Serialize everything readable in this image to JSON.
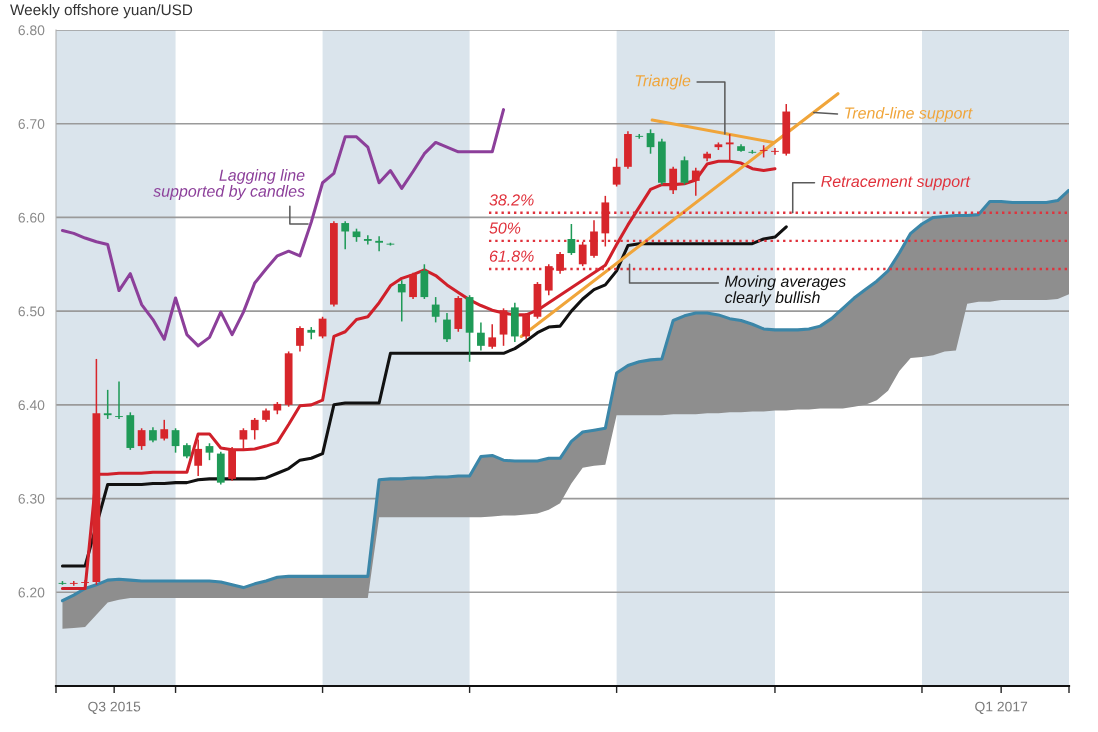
{
  "chart_data": {
    "type": "candlestick",
    "title": "Weekly offshore yuan/USD",
    "x": [
      "2015-07-20",
      "2015-07-27",
      "2015-08-03",
      "2015-08-10",
      "2015-08-17",
      "2015-08-24",
      "2015-08-31",
      "2015-09-07",
      "2015-09-14",
      "2015-09-21",
      "2015-09-28",
      "2015-10-05",
      "2015-10-12",
      "2015-10-19",
      "2015-10-26",
      "2015-11-02",
      "2015-11-09",
      "2015-11-16",
      "2015-11-23",
      "2015-11-30",
      "2015-12-07",
      "2015-12-14",
      "2015-12-21",
      "2015-12-28",
      "2016-01-04",
      "2016-01-11",
      "2016-01-18",
      "2016-01-25",
      "2016-02-01",
      "2016-02-08",
      "2016-02-15",
      "2016-02-22",
      "2016-02-29",
      "2016-03-07",
      "2016-03-14",
      "2016-03-21",
      "2016-03-28",
      "2016-04-04",
      "2016-04-11",
      "2016-04-18",
      "2016-04-25",
      "2016-05-02",
      "2016-05-09",
      "2016-05-16",
      "2016-05-23",
      "2016-05-30",
      "2016-06-06",
      "2016-06-13",
      "2016-06-20",
      "2016-06-27",
      "2016-07-04",
      "2016-07-11",
      "2016-07-18",
      "2016-07-25",
      "2016-08-01",
      "2016-08-08",
      "2016-08-15",
      "2016-08-22",
      "2016-08-29",
      "2016-09-05",
      "2016-09-12",
      "2016-09-19",
      "2016-09-26",
      "2016-10-03",
      "2016-10-10"
    ],
    "ohlc": [
      [
        6.21,
        6.212,
        6.208,
        6.209
      ],
      [
        6.209,
        6.212,
        6.207,
        6.21
      ],
      [
        6.21,
        6.213,
        6.208,
        6.211
      ],
      [
        6.211,
        6.449,
        6.208,
        6.391
      ],
      [
        6.391,
        6.416,
        6.385,
        6.389
      ],
      [
        6.388,
        6.425,
        6.385,
        6.387
      ],
      [
        6.389,
        6.392,
        6.352,
        6.354
      ],
      [
        6.356,
        6.375,
        6.352,
        6.373
      ],
      [
        6.373,
        6.376,
        6.36,
        6.362
      ],
      [
        6.364,
        6.384,
        6.362,
        6.374
      ],
      [
        6.373,
        6.375,
        6.349,
        6.356
      ],
      [
        6.357,
        6.359,
        6.343,
        6.345
      ],
      [
        6.335,
        6.363,
        6.324,
        6.353
      ],
      [
        6.356,
        6.359,
        6.341,
        6.349
      ],
      [
        6.348,
        6.35,
        6.315,
        6.317
      ],
      [
        6.321,
        6.355,
        6.319,
        6.353
      ],
      [
        6.363,
        6.375,
        6.353,
        6.373
      ],
      [
        6.373,
        6.386,
        6.363,
        6.384
      ],
      [
        6.384,
        6.396,
        6.382,
        6.394
      ],
      [
        6.394,
        6.403,
        6.39,
        6.401
      ],
      [
        6.4,
        6.457,
        6.398,
        6.455
      ],
      [
        6.463,
        6.484,
        6.457,
        6.482
      ],
      [
        6.48,
        6.483,
        6.47,
        6.477
      ],
      [
        6.473,
        6.494,
        6.471,
        6.492
      ],
      [
        6.507,
        6.596,
        6.505,
        6.594
      ],
      [
        6.594,
        6.596,
        6.566,
        6.585
      ],
      [
        6.585,
        6.588,
        6.574,
        6.579
      ],
      [
        6.577,
        6.581,
        6.571,
        6.575
      ],
      [
        6.575,
        6.58,
        6.564,
        6.573
      ],
      [
        6.572,
        6.573,
        6.57,
        6.571
      ],
      [
        6.529,
        6.533,
        6.489,
        6.52
      ],
      [
        6.515,
        6.541,
        6.513,
        6.539
      ],
      [
        6.543,
        6.55,
        6.513,
        6.515
      ],
      [
        6.507,
        6.515,
        6.488,
        6.494
      ],
      [
        6.491,
        6.498,
        6.467,
        6.47
      ],
      [
        6.481,
        6.516,
        6.478,
        6.514
      ],
      [
        6.515,
        6.517,
        6.446,
        6.477
      ],
      [
        6.477,
        6.488,
        6.458,
        6.463
      ],
      [
        6.462,
        6.486,
        6.46,
        6.472
      ],
      [
        6.475,
        6.503,
        6.463,
        6.501
      ],
      [
        6.504,
        6.509,
        6.467,
        6.473
      ],
      [
        6.473,
        6.498,
        6.47,
        6.496
      ],
      [
        6.494,
        6.531,
        6.492,
        6.529
      ],
      [
        6.522,
        6.55,
        6.517,
        6.548
      ],
      [
        6.543,
        6.563,
        6.54,
        6.561
      ],
      [
        6.577,
        6.593,
        6.56,
        6.562
      ],
      [
        6.55,
        6.574,
        6.548,
        6.571
      ],
      [
        6.559,
        6.597,
        6.557,
        6.585
      ],
      [
        6.583,
        6.623,
        6.569,
        6.616
      ],
      [
        6.635,
        6.663,
        6.633,
        6.654
      ],
      [
        6.654,
        6.692,
        6.652,
        6.689
      ],
      [
        6.687,
        6.689,
        6.684,
        6.686
      ],
      [
        6.69,
        6.694,
        6.668,
        6.675
      ],
      [
        6.681,
        6.684,
        6.635,
        6.637
      ],
      [
        6.629,
        6.654,
        6.625,
        6.652
      ],
      [
        6.661,
        6.665,
        6.635,
        6.637
      ],
      [
        6.639,
        6.653,
        6.623,
        6.65
      ],
      [
        6.663,
        6.67,
        6.66,
        6.668
      ],
      [
        6.675,
        6.68,
        6.672,
        6.678
      ],
      [
        6.678,
        6.689,
        6.661,
        6.68
      ],
      [
        6.676,
        6.678,
        6.67,
        6.671
      ],
      [
        6.67,
        6.672,
        6.668,
        6.669
      ],
      [
        6.671,
        6.677,
        6.664,
        6.672
      ],
      [
        6.67,
        6.674,
        6.667,
        6.671
      ],
      [
        6.668,
        6.721,
        6.666,
        6.713
      ]
    ],
    "colors": [
      "#1f9a57",
      "#d7262b",
      "#d7262b",
      "#d7262b",
      "#1f9a57",
      "#1f9a57",
      "#1f9a57",
      "#d7262b",
      "#1f9a57",
      "#d7262b",
      "#1f9a57",
      "#1f9a57",
      "#d7262b",
      "#1f9a57",
      "#1f9a57",
      "#d7262b",
      "#d7262b",
      "#d7262b",
      "#d7262b",
      "#d7262b",
      "#d7262b",
      "#d7262b",
      "#1f9a57",
      "#d7262b",
      "#d7262b",
      "#1f9a57",
      "#1f9a57",
      "#1f9a57",
      "#1f9a57",
      "#1f9a57",
      "#1f9a57",
      "#d7262b",
      "#1f9a57",
      "#1f9a57",
      "#1f9a57",
      "#d7262b",
      "#1f9a57",
      "#1f9a57",
      "#d7262b",
      "#d7262b",
      "#1f9a57",
      "#d7262b",
      "#d7262b",
      "#d7262b",
      "#d7262b",
      "#1f9a57",
      "#d7262b",
      "#d7262b",
      "#d7262b",
      "#d7262b",
      "#d7262b",
      "#1f9a57",
      "#1f9a57",
      "#1f9a57",
      "#d7262b",
      "#1f9a57",
      "#d7262b",
      "#d7262b",
      "#d7262b",
      "#d7262b",
      "#1f9a57",
      "#1f9a57",
      "#d7262b",
      "#d7262b",
      "#d7262b"
    ],
    "series": [
      {
        "type": "line",
        "color": "#3b86a8",
        "x": [
          "2015-07-20",
          "2015-07-27",
          "2015-08-03",
          "2015-08-10",
          "2015-08-17",
          "2015-08-24",
          "2015-08-31",
          "2015-09-07",
          "2015-09-14",
          "2015-09-21",
          "2015-09-28",
          "2015-10-05",
          "2015-10-12",
          "2015-10-19",
          "2015-10-26",
          "2015-11-02",
          "2015-11-09",
          "2015-11-16",
          "2015-11-23",
          "2015-11-30",
          "2015-12-07",
          "2015-12-14",
          "2015-12-21",
          "2015-12-28",
          "2016-01-04",
          "2016-01-11",
          "2016-01-18",
          "2016-01-25",
          "2016-02-01",
          "2016-02-08",
          "2016-02-15",
          "2016-02-22",
          "2016-02-29",
          "2016-03-07",
          "2016-03-14",
          "2016-03-21",
          "2016-03-28",
          "2016-04-04",
          "2016-04-11",
          "2016-04-18",
          "2016-04-25",
          "2016-05-02",
          "2016-05-09",
          "2016-05-16",
          "2016-05-23",
          "2016-05-30",
          "2016-06-06",
          "2016-06-13",
          "2016-06-20",
          "2016-06-27",
          "2016-07-04",
          "2016-07-11",
          "2016-07-18",
          "2016-07-25",
          "2016-08-01",
          "2016-08-08",
          "2016-08-15",
          "2016-08-22",
          "2016-08-29",
          "2016-09-05",
          "2016-09-12",
          "2016-09-19",
          "2016-09-26",
          "2016-10-03",
          "2016-10-10",
          "2016-10-17",
          "2016-10-24",
          "2016-10-31",
          "2016-11-07",
          "2016-11-14",
          "2016-11-21",
          "2016-11-28",
          "2016-12-05",
          "2016-12-12",
          "2016-12-19",
          "2016-12-26",
          "2017-01-02",
          "2017-01-09",
          "2017-01-16",
          "2017-01-23",
          "2017-01-30",
          "2017-02-06",
          "2017-02-13",
          "2017-02-20",
          "2017-02-27",
          "2017-03-06",
          "2017-03-13",
          "2017-03-20",
          "2017-03-27",
          "2017-04-03"
        ],
        "values": [
          6.191,
          6.197,
          6.204,
          6.208,
          6.213,
          6.214,
          6.213,
          6.212,
          6.212,
          6.212,
          6.212,
          6.212,
          6.212,
          6.212,
          6.211,
          6.208,
          6.205,
          6.209,
          6.212,
          6.216,
          6.217,
          6.217,
          6.217,
          6.217,
          6.217,
          6.217,
          6.217,
          6.217,
          6.32,
          6.321,
          6.321,
          6.322,
          6.322,
          6.323,
          6.323,
          6.324,
          6.324,
          6.345,
          6.346,
          6.341,
          6.34,
          6.34,
          6.34,
          6.343,
          6.343,
          6.361,
          6.371,
          6.373,
          6.375,
          6.434,
          6.442,
          6.446,
          6.448,
          6.449,
          6.49,
          6.495,
          6.498,
          6.498,
          6.496,
          6.492,
          6.49,
          6.486,
          6.481,
          6.48,
          6.48,
          6.48,
          6.481,
          6.484,
          6.492,
          6.503,
          6.514,
          6.523,
          6.532,
          6.543,
          6.562,
          6.583,
          6.593,
          6.6,
          6.601,
          6.602,
          6.602,
          6.603,
          6.617,
          6.617,
          6.616,
          6.616,
          6.616,
          6.616,
          6.618,
          6.629
        ],
        "lower": [
          6.161,
          6.162,
          6.163,
          6.176,
          6.189,
          6.192,
          6.194,
          6.194,
          6.194,
          6.194,
          6.194,
          6.194,
          6.194,
          6.194,
          6.194,
          6.194,
          6.194,
          6.194,
          6.194,
          6.194,
          6.194,
          6.194,
          6.194,
          6.194,
          6.194,
          6.194,
          6.194,
          6.194,
          6.28,
          6.28,
          6.28,
          6.28,
          6.28,
          6.28,
          6.28,
          6.28,
          6.28,
          6.28,
          6.281,
          6.282,
          6.282,
          6.283,
          6.284,
          6.288,
          6.295,
          6.316,
          6.333,
          6.335,
          6.336,
          6.389,
          6.389,
          6.389,
          6.389,
          6.389,
          6.39,
          6.39,
          6.39,
          6.391,
          6.391,
          6.392,
          6.392,
          6.393,
          6.393,
          6.394,
          6.394,
          6.395,
          6.395,
          6.396,
          6.396,
          6.396,
          6.398,
          6.4,
          6.405,
          6.415,
          6.436,
          6.45,
          6.451,
          6.453,
          6.457,
          6.458,
          6.508,
          6.51,
          6.51,
          6.512,
          6.512,
          6.512,
          6.512,
          6.512,
          6.513,
          6.518
        ],
        "upper": [
          6.191,
          6.197,
          6.204,
          6.208,
          6.213,
          6.214,
          6.213,
          6.212,
          6.212,
          6.212,
          6.212,
          6.212,
          6.212,
          6.212,
          6.211,
          6.208,
          6.205,
          6.209,
          6.212,
          6.216,
          6.217,
          6.217,
          6.217,
          6.217,
          6.217,
          6.217,
          6.217,
          6.217,
          6.32,
          6.321,
          6.321,
          6.322,
          6.322,
          6.323,
          6.323,
          6.324,
          6.324,
          6.345,
          6.346,
          6.341,
          6.34,
          6.34,
          6.34,
          6.343,
          6.343,
          6.361,
          6.371,
          6.373,
          6.375,
          6.434,
          6.442,
          6.446,
          6.448,
          6.449,
          6.49,
          6.495,
          6.498,
          6.498,
          6.496,
          6.492,
          6.49,
          6.486,
          6.481,
          6.48,
          6.48,
          6.48,
          6.481,
          6.484,
          6.492,
          6.503,
          6.514,
          6.523,
          6.532,
          6.543,
          6.562,
          6.583,
          6.593,
          6.6,
          6.601,
          6.602,
          6.602,
          6.603,
          6.617,
          6.617,
          6.616,
          6.616,
          6.616,
          6.616,
          6.618,
          6.629
        ]
      },
      {
        "type": "line",
        "color": "#111111",
        "values": [
          6.228,
          6.228,
          6.228,
          null,
          6.315,
          6.315,
          6.315,
          6.315,
          6.316,
          6.316,
          6.317,
          6.317,
          6.32,
          6.321,
          6.321,
          6.321,
          6.321,
          6.321,
          6.322,
          6.327,
          6.332,
          6.341,
          6.343,
          6.348,
          6.4,
          6.402,
          6.402,
          6.402,
          6.402,
          6.455,
          6.455,
          6.455,
          6.455,
          6.455,
          6.455,
          6.455,
          6.455,
          6.455,
          6.455,
          6.455,
          6.46,
          6.468,
          6.477,
          6.483,
          6.484,
          6.5,
          6.513,
          6.523,
          6.528,
          6.543,
          6.57,
          6.572,
          6.572,
          6.572,
          6.572,
          6.572,
          6.572,
          6.572,
          6.572,
          6.572,
          6.572,
          6.572,
          6.577,
          6.579,
          6.59
        ]
      },
      {
        "type": "line",
        "color": "#d0202a",
        "values": [
          6.204,
          6.204,
          6.204,
          6.326,
          6.326,
          6.327,
          6.327,
          6.327,
          6.328,
          6.328,
          6.328,
          6.328,
          6.369,
          6.369,
          6.354,
          6.352,
          6.352,
          6.353,
          6.356,
          6.36,
          6.379,
          6.399,
          6.4,
          6.405,
          6.473,
          6.478,
          6.491,
          6.494,
          6.509,
          6.527,
          6.535,
          6.539,
          6.544,
          6.538,
          6.528,
          6.52,
          6.512,
          6.506,
          6.501,
          6.498,
          6.496,
          6.496,
          6.501,
          6.509,
          6.517,
          6.525,
          6.533,
          6.541,
          6.549,
          6.571,
          6.592,
          6.611,
          6.63,
          6.635,
          6.635,
          6.636,
          6.64,
          6.657,
          6.66,
          6.66,
          6.658,
          6.652,
          6.65,
          6.652,
          null
        ]
      },
      {
        "type": "line",
        "color": "#8c3f9a",
        "x": [
          "2015-07-20",
          "2015-07-27",
          "2015-08-03",
          "2015-08-10",
          "2015-08-17",
          "2015-08-24",
          "2015-08-31",
          "2015-09-07",
          "2015-09-14",
          "2015-09-21",
          "2015-09-28",
          "2015-10-05",
          "2015-10-12",
          "2015-10-19",
          "2015-10-26",
          "2015-11-02",
          "2015-11-09",
          "2015-11-16",
          "2015-11-23",
          "2015-11-30",
          "2015-12-07",
          "2015-12-14",
          "2015-12-21",
          "2015-12-28",
          "2016-01-04",
          "2016-01-11",
          "2016-01-18",
          "2016-01-25",
          "2016-02-01",
          "2016-02-08",
          "2016-02-15",
          "2016-02-22",
          "2016-02-29",
          "2016-03-07",
          "2016-03-14",
          "2016-03-21",
          "2016-03-28",
          "2016-04-04",
          "2016-04-11",
          "2016-04-18"
        ],
        "values": [
          6.586,
          6.583,
          6.578,
          6.574,
          6.571,
          6.522,
          6.54,
          6.507,
          6.491,
          6.47,
          6.514,
          6.475,
          6.463,
          6.472,
          6.499,
          6.475,
          6.499,
          6.53,
          6.545,
          6.559,
          6.564,
          6.559,
          6.595,
          6.637,
          6.647,
          6.686,
          6.686,
          6.675,
          6.637,
          6.65,
          6.631,
          6.649,
          6.668,
          6.68,
          6.675,
          6.67,
          6.67,
          6.67,
          6.67,
          6.715
        ]
      },
      {
        "type": "line",
        "color": "#f0a53a",
        "x": [
          "2016-07-19",
          "2016-10-02"
        ],
        "values": [
          6.704,
          6.68
        ]
      },
      {
        "type": "line",
        "color": "#f0a53a",
        "x": [
          "2016-04-29",
          "2016-11-11"
        ],
        "values": [
          6.473,
          6.732
        ]
      },
      {
        "type": "line",
        "color": "#e0323c",
        "line_style": "dotted",
        "x": [
          "2016-04-09",
          "2017-04-03"
        ],
        "values": [
          6.605,
          6.605
        ]
      },
      {
        "type": "line",
        "color": "#e0323c",
        "line_style": "dotted",
        "x": [
          "2016-04-09",
          "2017-04-03"
        ],
        "values": [
          6.575,
          6.575
        ]
      },
      {
        "type": "line",
        "color": "#e0323c",
        "line_style": "dotted",
        "x": [
          "2016-04-09",
          "2017-04-03"
        ],
        "values": [
          6.545,
          6.545
        ]
      }
    ],
    "xlim": [
      "2015-07-16",
      "2017-04-03"
    ],
    "xticks": [
      {
        "value": "2015-07-16",
        "label": null
      },
      {
        "value": "2015-08-21",
        "label": "Q3 2015"
      },
      {
        "value": "2015-09-28",
        "label": null
      },
      {
        "value": "2015-12-28",
        "label": null
      },
      {
        "value": "2016-03-28",
        "label": null
      },
      {
        "value": "2016-06-27",
        "label": null
      },
      {
        "value": "2016-10-03",
        "label": null
      },
      {
        "value": "2017-01-02",
        "label": null
      },
      {
        "value": "2017-02-20",
        "label": "Q1 2017"
      },
      {
        "value": "2017-04-03",
        "label": null
      }
    ],
    "ylim": [
      6.1,
      6.8
    ],
    "yticks": [
      {
        "value": 6.2,
        "label": "6.20"
      },
      {
        "value": 6.3,
        "label": "6.30"
      },
      {
        "value": 6.4,
        "label": "6.40"
      },
      {
        "value": 6.5,
        "label": "6.50"
      },
      {
        "value": 6.6,
        "label": "6.60"
      },
      {
        "value": 6.7,
        "label": "6.70"
      },
      {
        "value": 6.8,
        "label": "6.80"
      }
    ],
    "grid": "y",
    "bands": [
      {
        "axis": "x",
        "from": "2015-07-16",
        "to": "2015-09-28",
        "color": "#dae4ec"
      },
      {
        "axis": "x",
        "from": "2015-12-28",
        "to": "2016-03-28",
        "color": "#dae4ec"
      },
      {
        "axis": "x",
        "from": "2016-06-27",
        "to": "2016-10-03",
        "color": "#dae4ec"
      },
      {
        "axis": "x",
        "from": "2017-01-02",
        "to": "2017-04-03",
        "color": "#dae4ec"
      }
    ],
    "annotations": [
      {
        "text": "Triangle",
        "x": "2016-09-02",
        "y": 6.689
      },
      {
        "text": "Trend-line support",
        "x": "2016-10-27",
        "y": 6.712
      },
      {
        "text": "Retracement support",
        "x": "2016-10-14",
        "y": 6.605
      },
      {
        "text": "Lagging line\nsupported by candles",
        "x": "2015-12-19",
        "y": 6.593
      },
      {
        "text": "Moving averages\nclearly bullish",
        "x": "2016-07-05",
        "y": 6.55
      },
      {
        "text": "38.2%",
        "x": "2016-04-09",
        "y": 6.605
      },
      {
        "text": "50%",
        "x": "2016-04-09",
        "y": 6.575
      },
      {
        "text": "61.8%",
        "x": "2016-04-09",
        "y": 6.545
      }
    ]
  }
}
